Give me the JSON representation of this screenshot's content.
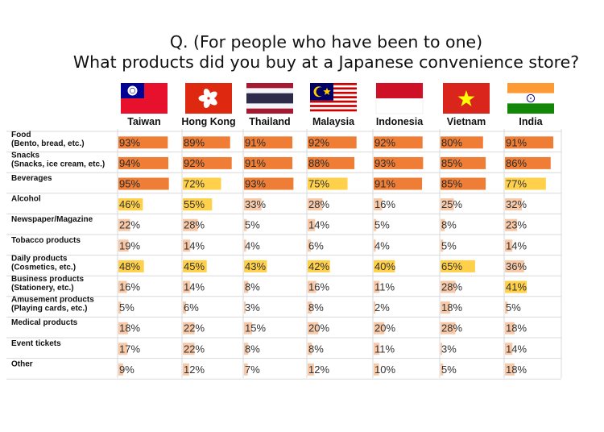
{
  "title_line1": "Q. (For people who have been to one)",
  "title_line2": "What products did you buy at a Japanese convenience store?",
  "chart_data": {
    "type": "table",
    "columns": [
      "Taiwan",
      "Hong Kong",
      "Thailand",
      "Malaysia",
      "Indonesia",
      "Vietnam",
      "India"
    ],
    "rows": [
      {
        "label": [
          "Food",
          "(Bento, bread, etc.)"
        ],
        "values": [
          93,
          89,
          91,
          92,
          92,
          80,
          91
        ]
      },
      {
        "label": [
          "Snacks",
          "(Snacks, ice cream, etc.)"
        ],
        "values": [
          94,
          92,
          91,
          88,
          93,
          85,
          86
        ]
      },
      {
        "label": [
          "Beverages"
        ],
        "values": [
          95,
          72,
          93,
          75,
          91,
          85,
          77
        ]
      },
      {
        "label": [
          "Alcohol"
        ],
        "values": [
          46,
          55,
          33,
          28,
          16,
          25,
          32
        ]
      },
      {
        "label": [
          "Newspaper/Magazine"
        ],
        "values": [
          22,
          28,
          5,
          14,
          5,
          8,
          23
        ]
      },
      {
        "label": [
          "Tobacco products"
        ],
        "values": [
          19,
          14,
          4,
          6,
          4,
          5,
          14
        ]
      },
      {
        "label": [
          "Daily products",
          "(Cosmetics, etc.)"
        ],
        "values": [
          48,
          45,
          43,
          42,
          40,
          65,
          36
        ]
      },
      {
        "label": [
          "Business products",
          "(Stationery, etc.)"
        ],
        "values": [
          16,
          14,
          8,
          16,
          11,
          28,
          41
        ]
      },
      {
        "label": [
          "Amusement products",
          "(Playing cards, etc.)"
        ],
        "values": [
          5,
          6,
          3,
          8,
          2,
          18,
          5
        ]
      },
      {
        "label": [
          "Medical products"
        ],
        "values": [
          18,
          22,
          15,
          20,
          20,
          28,
          18
        ]
      },
      {
        "label": [
          "Event tickets"
        ],
        "values": [
          17,
          22,
          8,
          8,
          11,
          3,
          14
        ]
      },
      {
        "label": [
          "Other"
        ],
        "values": [
          9,
          12,
          7,
          12,
          10,
          5,
          18
        ]
      }
    ],
    "unit": "%",
    "colors": {
      "high": "#ef7d35",
      "mid": "#ffd04a",
      "low": "#f7c9a8",
      "grid": "#d9d9d9",
      "text": "#333333"
    }
  }
}
